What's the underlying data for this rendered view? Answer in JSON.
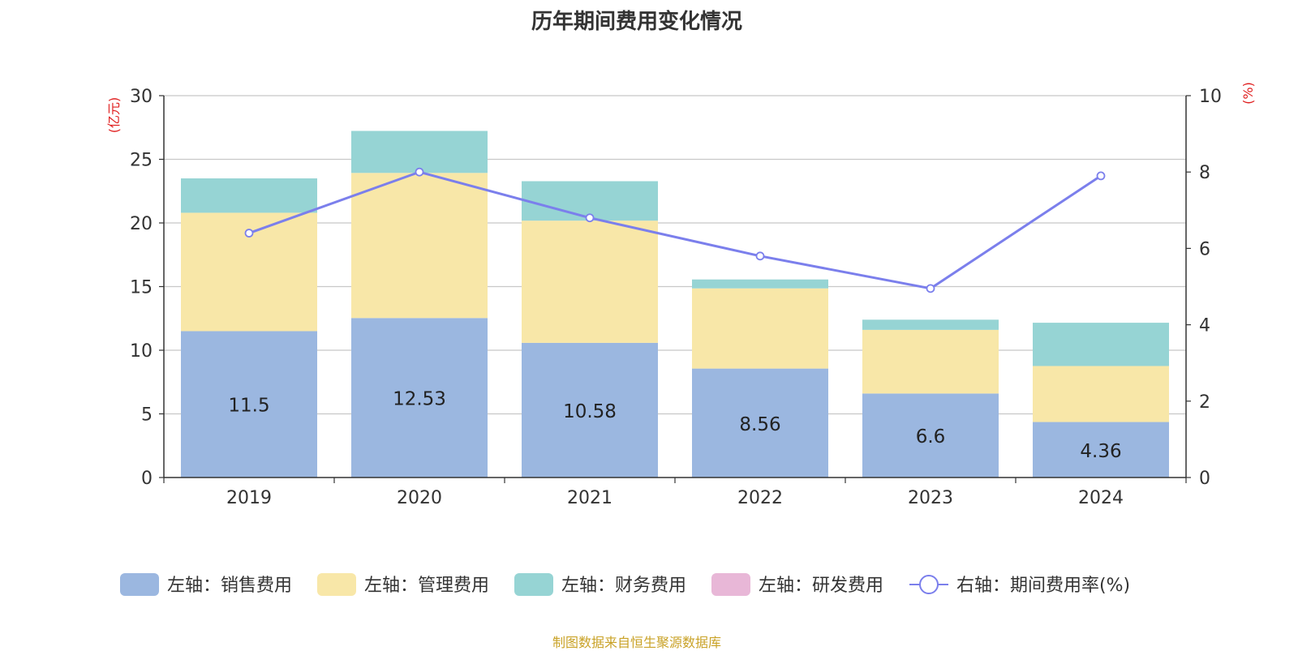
{
  "chart_data": {
    "type": "bar",
    "title": "历年期间费用变化情况",
    "categories": [
      "2019",
      "2020",
      "2021",
      "2022",
      "2023",
      "2024"
    ],
    "left_axis": {
      "label": "(亿元)",
      "ylim": [
        0,
        30
      ],
      "ticks": [
        0,
        5,
        10,
        15,
        20,
        25,
        30
      ]
    },
    "right_axis": {
      "label": "(%)",
      "ylim": [
        0,
        10
      ],
      "ticks": [
        0,
        2,
        4,
        6,
        8,
        10
      ]
    },
    "series": [
      {
        "name": "左轴：销售费用",
        "kind": "bar",
        "axis": "left",
        "color": "#9bb7e0",
        "values": [
          11.5,
          12.53,
          10.58,
          8.56,
          6.6,
          4.36
        ],
        "show_labels": true
      },
      {
        "name": "左轴：管理费用",
        "kind": "bar",
        "axis": "left",
        "color": "#f8e7a8",
        "values": [
          9.3,
          11.4,
          9.6,
          6.3,
          5.0,
          4.4
        ],
        "show_labels": false
      },
      {
        "name": "左轴：财务费用",
        "kind": "bar",
        "axis": "left",
        "color": "#96d4d4",
        "values": [
          2.7,
          3.3,
          3.1,
          0.7,
          0.8,
          3.4
        ],
        "show_labels": false
      },
      {
        "name": "左轴：研发费用",
        "kind": "bar",
        "axis": "left",
        "color": "#e8b7d7",
        "values": [
          0,
          0,
          0,
          0,
          0,
          0
        ],
        "show_labels": false
      },
      {
        "name": "右轴：期间费用率(%)",
        "kind": "line",
        "axis": "right",
        "color": "#7b7fec",
        "values": [
          6.4,
          8.0,
          6.8,
          5.8,
          4.95,
          7.9
        ],
        "show_labels": false
      }
    ],
    "legend_position": "bottom",
    "grid": true
  },
  "footer": {
    "source": "制图数据来自恒生聚源数据库"
  }
}
